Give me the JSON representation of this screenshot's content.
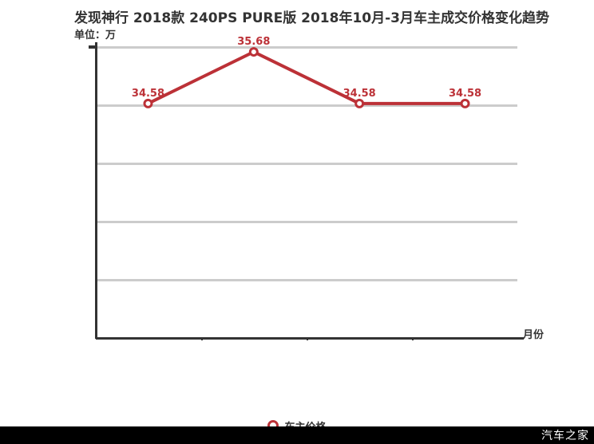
{
  "title": "发现神行 2018款 240PS PURE版 2018年10月-3月车主成交价格变化趋势",
  "unit_label": "单位：万",
  "xaxis_label": "月份",
  "legend": {
    "label": "车主价格"
  },
  "watermark": "汽车之家",
  "colors": {
    "line": "#bc3137",
    "grid": "#cccccc",
    "axis": "#333333",
    "text": "#333333",
    "watermark_bg": "#000000",
    "watermark_text": "#ffffff"
  },
  "chart_data": {
    "type": "line",
    "title": "发现神行 2018款 240PS PURE版 2018年10月-3月车主成交价格变化趋势",
    "xlabel": "月份",
    "ylabel": "单位：万",
    "grid": true,
    "legend_position": "bottom",
    "ylim": [
      29.6,
      35.8
    ],
    "series": [
      {
        "name": "车主价格",
        "values": [
          34.58,
          35.68,
          34.58,
          34.58
        ],
        "point_labels": [
          "34.58",
          "35.68",
          "34.58",
          "34.58"
        ],
        "color": "#bc3137"
      }
    ]
  }
}
